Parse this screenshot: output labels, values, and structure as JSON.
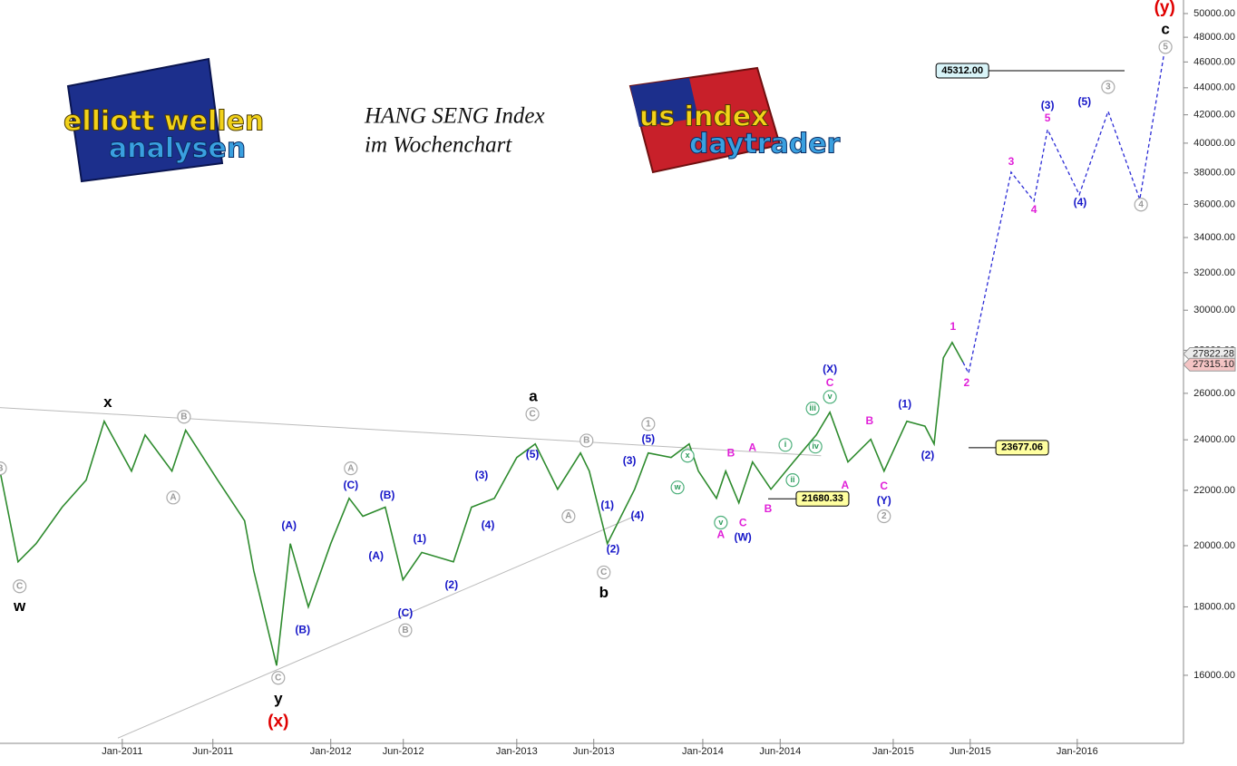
{
  "chart_data": {
    "type": "line",
    "title": "HANG SENG Index",
    "subtitle": "im Wochenchart",
    "logos": [
      {
        "lines": [
          "elliott wellen",
          "analysen"
        ]
      },
      {
        "lines": [
          "us index",
          "daytrader"
        ]
      }
    ],
    "log_scale": true,
    "xlim": [
      -30.5,
      264.7
    ],
    "ylim": [
      14120,
      51180
    ],
    "xticks": [
      {
        "value": 0,
        "label": "Jan-2011"
      },
      {
        "value": 22.6,
        "label": "Jun-2011"
      },
      {
        "value": 52,
        "label": "Jan-2012"
      },
      {
        "value": 70.1,
        "label": "Jun-2012"
      },
      {
        "value": 98.4,
        "label": "Jan-2013"
      },
      {
        "value": 117.6,
        "label": "Jun-2013"
      },
      {
        "value": 144.8,
        "label": "Jan-2014"
      },
      {
        "value": 164.1,
        "label": "Jun-2014"
      },
      {
        "value": 192.3,
        "label": "Jan-2015"
      },
      {
        "value": 211.5,
        "label": "Jun-2015"
      },
      {
        "value": 238.2,
        "label": "Jan-2016"
      }
    ],
    "yticks": [
      {
        "value": 16000,
        "label": "16000.00"
      },
      {
        "value": 18000,
        "label": "18000.00"
      },
      {
        "value": 20000,
        "label": "20000.00"
      },
      {
        "value": 22000,
        "label": "22000.00"
      },
      {
        "value": 24000,
        "label": "24000.00"
      },
      {
        "value": 26000,
        "label": "26000.00"
      },
      {
        "value": 28000,
        "label": "28000.00"
      },
      {
        "value": 30000,
        "label": "30000.00"
      },
      {
        "value": 32000,
        "label": "32000.00"
      },
      {
        "value": 34000,
        "label": "34000.00"
      },
      {
        "value": 36000,
        "label": "36000.00"
      },
      {
        "value": 38000,
        "label": "38000.00"
      },
      {
        "value": 40000,
        "label": "40000.00"
      },
      {
        "value": 42000,
        "label": "42000.00"
      },
      {
        "value": 44000,
        "label": "44000.00"
      },
      {
        "value": 46000,
        "label": "46000.00"
      },
      {
        "value": 48000,
        "label": "48000.00"
      },
      {
        "value": 50000,
        "label": "50000.00"
      }
    ],
    "series": [
      {
        "color": "#2e8b2e",
        "dashed": false,
        "x": [
          -30.5,
          -26,
          -21.5,
          -15,
          -9,
          -4.5,
          2.3,
          5.7,
          12.4,
          15.8,
          23.8,
          30.5,
          32.8,
          38.5,
          41.9,
          46.4,
          52,
          56.6,
          60,
          65.6,
          70,
          74.7,
          82.6,
          87.1,
          92.8,
          98.4,
          103,
          108.6,
          114.3,
          116.5,
          121,
          127.8,
          131.2,
          136.9,
          141.4,
          143.7,
          148.2,
          150.5,
          153.8,
          157.2,
          161.8,
          167.4,
          173.1,
          176.5,
          181,
          186.7,
          190,
          195.7,
          200.2,
          202.5,
          204.8,
          207,
          209.7
        ],
        "values": [
          22740,
          19450,
          20070,
          21370,
          22390,
          24780,
          22740,
          24200,
          22740,
          24400,
          22390,
          20880,
          19160,
          16270,
          20070,
          18000,
          20070,
          21700,
          21040,
          21370,
          18860,
          19770,
          19450,
          21370,
          21700,
          23280,
          23830,
          22040,
          23460,
          22740,
          20070,
          22040,
          23460,
          23280,
          23830,
          22740,
          21700,
          22740,
          21530,
          23100,
          22040,
          23100,
          24200,
          25170,
          23100,
          24020,
          22740,
          24780,
          24570,
          23830,
          27640,
          28380,
          27430
        ]
      },
      {
        "color": "#2b2bd6",
        "dashed": true,
        "x": [
          209.7,
          211.1,
          221.7,
          227.4,
          230.8,
          238.7,
          245.9,
          253.8,
          260.2
        ],
        "values": [
          27430,
          26920,
          38050,
          36200,
          40950,
          36600,
          42250,
          36300,
          47340
        ]
      }
    ],
    "trendlines": [
      {
        "x": [
          -30.5,
          174.3
        ],
        "values": [
          25370,
          23350
        ]
      },
      {
        "x": [
          -1.1,
          127.8
        ],
        "values": [
          14360,
          21040
        ]
      }
    ],
    "levels": [
      {
        "value": 45312,
        "label": "45312.00",
        "x": [
          216.1,
          250
        ],
        "color": "#d8f4f8",
        "box": "left"
      },
      {
        "value": 23677.06,
        "label": "23677.06",
        "x": [
          211.1,
          217.9
        ],
        "color": "#ffffa0",
        "box": "right"
      },
      {
        "value": 21680.33,
        "label": "21680.33",
        "x": [
          161.1,
          168.1
        ],
        "color": "#ffffa0",
        "box": "right"
      }
    ],
    "price_tags": [
      {
        "value": 27822.28,
        "label": "27822.28",
        "color": "#ececec"
      },
      {
        "value": 27315.1,
        "label": "27315.10",
        "color": "#f4c4c4"
      }
    ],
    "annotations": [
      {
        "text": "w",
        "x": -25.6,
        "y": 18000,
        "style": "black"
      },
      {
        "text": "x",
        "x": -3.6,
        "y": 25570,
        "style": "black"
      },
      {
        "text": "y",
        "x": 38.9,
        "y": 15350,
        "style": "black"
      },
      {
        "text": "a",
        "x": 102.5,
        "y": 25840,
        "style": "black"
      },
      {
        "text": "b",
        "x": 120.1,
        "y": 18420,
        "style": "black"
      },
      {
        "text": "c",
        "x": 260.2,
        "y": 48620,
        "style": "black"
      },
      {
        "text": "(x)",
        "x": 38.9,
        "y": 14760,
        "style": "red"
      },
      {
        "text": "(y)",
        "x": 260,
        "y": 50470,
        "style": "red"
      },
      {
        "text": "B",
        "x": -30.5,
        "y": 22850,
        "style": "gray-circle"
      },
      {
        "text": "C",
        "x": -25.6,
        "y": 18650,
        "style": "gray-circle"
      },
      {
        "text": "B",
        "x": 15.4,
        "y": 24970,
        "style": "gray-circle"
      },
      {
        "text": "A",
        "x": 12.7,
        "y": 21730,
        "style": "gray-circle"
      },
      {
        "text": "C",
        "x": 38.9,
        "y": 15930,
        "style": "gray-circle"
      },
      {
        "text": "A",
        "x": 57,
        "y": 22850,
        "style": "gray-circle"
      },
      {
        "text": "B",
        "x": 70.6,
        "y": 17290,
        "style": "gray-circle"
      },
      {
        "text": "C",
        "x": 102.3,
        "y": 25090,
        "style": "gray-circle"
      },
      {
        "text": "B",
        "x": 115.8,
        "y": 23970,
        "style": "gray-circle"
      },
      {
        "text": "A",
        "x": 111.3,
        "y": 21040,
        "style": "gray-circle"
      },
      {
        "text": "C",
        "x": 120.1,
        "y": 19100,
        "style": "gray-circle"
      },
      {
        "text": "1",
        "x": 131.2,
        "y": 24660,
        "style": "gray-circle"
      },
      {
        "text": "2",
        "x": 190,
        "y": 21040,
        "style": "gray-circle"
      },
      {
        "text": "3",
        "x": 245.9,
        "y": 44060,
        "style": "gray-circle"
      },
      {
        "text": "4",
        "x": 254.1,
        "y": 35980,
        "style": "gray-circle"
      },
      {
        "text": "5",
        "x": 260.2,
        "y": 47200,
        "style": "gray-circle"
      },
      {
        "text": "x",
        "x": 141,
        "y": 23350,
        "style": "green-circle"
      },
      {
        "text": "w",
        "x": 138.5,
        "y": 22110,
        "style": "green-circle"
      },
      {
        "text": "v",
        "x": 149.3,
        "y": 20810,
        "style": "green-circle"
      },
      {
        "text": "i",
        "x": 165.4,
        "y": 23790,
        "style": "green-circle"
      },
      {
        "text": "ii",
        "x": 167.2,
        "y": 22390,
        "style": "green-circle"
      },
      {
        "text": "iii",
        "x": 172.2,
        "y": 25330,
        "style": "green-circle"
      },
      {
        "text": "iv",
        "x": 172.9,
        "y": 23720,
        "style": "green-circle"
      },
      {
        "text": "v",
        "x": 176.5,
        "y": 25840,
        "style": "green-circle"
      },
      {
        "text": "(A)",
        "x": 41.6,
        "y": 20680,
        "style": "blue"
      },
      {
        "text": "(B)",
        "x": 45,
        "y": 17290,
        "style": "blue"
      },
      {
        "text": "(C)",
        "x": 57,
        "y": 22180,
        "style": "blue"
      },
      {
        "text": "(B)",
        "x": 66.1,
        "y": 21800,
        "style": "blue"
      },
      {
        "text": "(A)",
        "x": 63.3,
        "y": 19640,
        "style": "blue"
      },
      {
        "text": "(C)",
        "x": 70.6,
        "y": 17800,
        "style": "blue"
      },
      {
        "text": "(1)",
        "x": 74.2,
        "y": 20230,
        "style": "blue"
      },
      {
        "text": "(2)",
        "x": 82.1,
        "y": 18680,
        "style": "blue"
      },
      {
        "text": "(3)",
        "x": 89.6,
        "y": 22560,
        "style": "blue"
      },
      {
        "text": "(4)",
        "x": 91.2,
        "y": 20710,
        "style": "blue"
      },
      {
        "text": "(5)",
        "x": 102.3,
        "y": 23390,
        "style": "blue"
      },
      {
        "text": "(1)",
        "x": 121,
        "y": 21430,
        "style": "blue"
      },
      {
        "text": "(2)",
        "x": 122.4,
        "y": 19860,
        "style": "blue"
      },
      {
        "text": "(3)",
        "x": 126.5,
        "y": 23130,
        "style": "blue"
      },
      {
        "text": "(4)",
        "x": 128.5,
        "y": 21040,
        "style": "blue"
      },
      {
        "text": "(5)",
        "x": 131.2,
        "y": 24020,
        "style": "blue"
      },
      {
        "text": "(W)",
        "x": 154.8,
        "y": 20270,
        "style": "blue"
      },
      {
        "text": "(X)",
        "x": 176.5,
        "y": 27080,
        "style": "blue"
      },
      {
        "text": "(Y)",
        "x": 190,
        "y": 21600,
        "style": "blue"
      },
      {
        "text": "(1)",
        "x": 195.2,
        "y": 25490,
        "style": "blue"
      },
      {
        "text": "(2)",
        "x": 200.9,
        "y": 23350,
        "style": "blue"
      },
      {
        "text": "(3)",
        "x": 230.8,
        "y": 42650,
        "style": "blue"
      },
      {
        "text": "(5)",
        "x": 240,
        "y": 42920,
        "style": "blue"
      },
      {
        "text": "(4)",
        "x": 238.9,
        "y": 36090,
        "style": "blue"
      },
      {
        "text": "B",
        "x": 151.8,
        "y": 23430,
        "style": "magenta"
      },
      {
        "text": "A",
        "x": 157.2,
        "y": 23650,
        "style": "magenta"
      },
      {
        "text": "A",
        "x": 149.3,
        "y": 20360,
        "style": "magenta"
      },
      {
        "text": "C",
        "x": 154.8,
        "y": 20780,
        "style": "magenta"
      },
      {
        "text": "B",
        "x": 161.1,
        "y": 21300,
        "style": "magenta"
      },
      {
        "text": "C",
        "x": 176.5,
        "y": 26460,
        "style": "magenta"
      },
      {
        "text": "A",
        "x": 180.3,
        "y": 22180,
        "style": "magenta"
      },
      {
        "text": "B",
        "x": 186.4,
        "y": 24780,
        "style": "magenta"
      },
      {
        "text": "C",
        "x": 190,
        "y": 22140,
        "style": "magenta"
      },
      {
        "text": "1",
        "x": 207.2,
        "y": 29140,
        "style": "magenta"
      },
      {
        "text": "2",
        "x": 210.6,
        "y": 26460,
        "style": "magenta"
      },
      {
        "text": "3",
        "x": 221.7,
        "y": 38710,
        "style": "magenta"
      },
      {
        "text": "5",
        "x": 230.8,
        "y": 41740,
        "style": "magenta"
      },
      {
        "text": "4",
        "x": 227.4,
        "y": 35640,
        "style": "magenta"
      }
    ]
  }
}
